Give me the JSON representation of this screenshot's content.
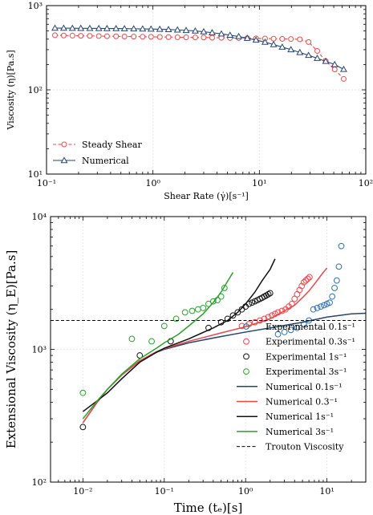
{
  "chart_data": [
    {
      "type": "line",
      "xscale": "log",
      "yscale": "log",
      "xlim": [
        0.1,
        100
      ],
      "ylim": [
        10,
        1000
      ],
      "xlabel": "Shear Rate (γ̇)[s⁻¹]",
      "ylabel": "Viscosity (η)[Pa.s]",
      "xticks": [
        {
          "v": 0.1,
          "label": "10⁻¹"
        },
        {
          "v": 1,
          "label": "10⁰"
        },
        {
          "v": 10,
          "label": "10¹"
        },
        {
          "v": 100,
          "label": "10²"
        }
      ],
      "yticks": [
        {
          "v": 10,
          "label": "10¹"
        },
        {
          "v": 100,
          "label": "10²"
        },
        {
          "v": 1000,
          "label": "10³"
        }
      ],
      "grid": true,
      "legend_position": "lower-left",
      "series": [
        {
          "name": "Steady Shear",
          "color": "#e8474a",
          "line_style": "dashed",
          "marker": "circle-open",
          "x": [
            0.12,
            0.145,
            0.175,
            0.21,
            0.255,
            0.31,
            0.37,
            0.45,
            0.54,
            0.66,
            0.8,
            0.96,
            1.16,
            1.4,
            1.7,
            2.05,
            2.5,
            3.0,
            3.6,
            4.4,
            5.3,
            6.4,
            7.7,
            9.3,
            11.3,
            13.6,
            16.4,
            19.8,
            24,
            29,
            35,
            42,
            51,
            62
          ],
          "values": [
            445,
            442,
            440,
            438,
            437,
            435,
            433,
            432,
            430,
            429,
            427,
            426,
            424,
            423,
            421,
            420,
            419,
            418,
            416,
            415,
            413,
            412,
            410,
            408,
            407,
            405,
            403,
            401,
            398,
            370,
            290,
            220,
            175,
            135
          ]
        },
        {
          "name": "Numerical",
          "color": "#26456e",
          "line_style": "solid",
          "marker": "triangle-open",
          "x": [
            0.12,
            0.145,
            0.175,
            0.21,
            0.255,
            0.31,
            0.37,
            0.45,
            0.54,
            0.66,
            0.8,
            0.96,
            1.16,
            1.4,
            1.7,
            2.05,
            2.5,
            3.0,
            3.6,
            4.4,
            5.3,
            6.4,
            7.7,
            9.3,
            11.3,
            13.6,
            16.4,
            19.8,
            24,
            29,
            35,
            42,
            51,
            62
          ],
          "values": [
            540,
            540,
            539,
            538,
            537,
            536,
            535,
            534,
            533,
            531,
            529,
            527,
            524,
            520,
            515,
            508,
            500,
            490,
            477,
            462,
            446,
            430,
            410,
            390,
            368,
            345,
            322,
            300,
            278,
            257,
            237,
            218,
            200,
            175
          ]
        }
      ]
    },
    {
      "type": "line",
      "xscale": "log",
      "yscale": "log",
      "xlim": [
        0.004,
        30
      ],
      "ylim": [
        100,
        10000
      ],
      "xlabel": "Time (tₑ)[s]",
      "ylabel": "Extensional Viscosity (η_E)[Pa.s]",
      "xticks": [
        {
          "v": 0.01,
          "label": "10⁻²"
        },
        {
          "v": 0.1,
          "label": "10⁻¹"
        },
        {
          "v": 1,
          "label": "10⁰"
        },
        {
          "v": 10,
          "label": "10¹"
        }
      ],
      "yticks": [
        {
          "v": 100,
          "label": "10²"
        },
        {
          "v": 1000,
          "label": "10³"
        },
        {
          "v": 10000,
          "label": "10⁴"
        }
      ],
      "grid": true,
      "legend_position": "lower-right",
      "series": [
        {
          "name": "Experimental 0.1s⁻¹",
          "kind": "points",
          "color": "#2e6fad",
          "marker": "circle-open",
          "x": [
            2.5,
            3.0,
            3.6,
            4.3,
            5.2,
            6.0,
            6.8,
            7.6,
            8.4,
            9.2,
            10.0,
            10.8,
            11.6,
            12.4,
            13.2,
            14.0,
            15.0
          ],
          "values": [
            1300,
            1350,
            1400,
            1450,
            1550,
            1650,
            2000,
            2050,
            2100,
            2150,
            2200,
            2250,
            2500,
            2900,
            3300,
            4200,
            6000
          ]
        },
        {
          "name": "Experimental 0.3s⁻¹",
          "kind": "points",
          "color": "#e8474a",
          "marker": "circle-open",
          "x": [
            0.9,
            1.1,
            1.3,
            1.5,
            1.7,
            1.9,
            2.1,
            2.3,
            2.5,
            2.8,
            3.1,
            3.4,
            3.7,
            4.0,
            4.3,
            4.6,
            4.9,
            5.2,
            5.5,
            5.8,
            6.1
          ],
          "values": [
            1500,
            1550,
            1600,
            1650,
            1700,
            1750,
            1800,
            1850,
            1900,
            1950,
            2000,
            2100,
            2200,
            2400,
            2600,
            2800,
            3000,
            3200,
            3300,
            3400,
            3500
          ]
        },
        {
          "name": "Experimental 1s⁻¹",
          "kind": "points",
          "color": "#111111",
          "marker": "circle-open",
          "x": [
            0.01,
            0.05,
            0.12,
            0.35,
            0.5,
            0.6,
            0.7,
            0.8,
            0.9,
            1.0,
            1.1,
            1.2,
            1.3,
            1.4,
            1.5,
            1.6,
            1.7,
            1.8,
            1.9,
            2.0
          ],
          "values": [
            260,
            900,
            1150,
            1450,
            1600,
            1700,
            1800,
            1900,
            2000,
            2100,
            2200,
            2250,
            2300,
            2350,
            2400,
            2450,
            2500,
            2550,
            2600,
            2650
          ]
        },
        {
          "name": "Experimental 3s⁻¹",
          "kind": "points",
          "color": "#2e9e2e",
          "marker": "circle-open",
          "x": [
            0.01,
            0.04,
            0.07,
            0.1,
            0.14,
            0.18,
            0.22,
            0.26,
            0.3,
            0.35,
            0.4,
            0.45,
            0.5,
            0.55
          ],
          "values": [
            470,
            1200,
            1150,
            1500,
            1700,
            1900,
            1950,
            2000,
            2050,
            2200,
            2300,
            2350,
            2500,
            2900
          ]
        },
        {
          "name": "Numerical 0.1s⁻¹",
          "kind": "line",
          "color": "#26456e",
          "x": [
            0.01,
            0.015,
            0.02,
            0.03,
            0.05,
            0.08,
            0.1,
            0.2,
            0.5,
            1,
            2,
            5,
            10,
            20,
            30
          ],
          "values": [
            280,
            400,
            500,
            640,
            820,
            950,
            1000,
            1120,
            1250,
            1350,
            1450,
            1600,
            1750,
            1850,
            1870
          ]
        },
        {
          "name": "Numerical 0.3⁻¹",
          "kind": "line",
          "color": "#e8474a",
          "x": [
            0.01,
            0.015,
            0.02,
            0.03,
            0.05,
            0.08,
            0.1,
            0.2,
            0.5,
            1,
            2,
            3,
            4,
            5,
            6,
            7,
            8,
            9,
            10
          ],
          "values": [
            280,
            400,
            500,
            640,
            820,
            960,
            1010,
            1150,
            1330,
            1480,
            1700,
            1950,
            2150,
            2450,
            2750,
            3100,
            3450,
            3800,
            4100
          ]
        },
        {
          "name": "Numerical 1s⁻¹",
          "kind": "line",
          "color": "#111111",
          "x": [
            0.01,
            0.015,
            0.02,
            0.03,
            0.05,
            0.08,
            0.1,
            0.2,
            0.4,
            0.6,
            0.8,
            1.0,
            1.3,
            1.6,
            2.0,
            2.3
          ],
          "values": [
            340,
            410,
            470,
            600,
            800,
            950,
            1020,
            1200,
            1450,
            1650,
            1900,
            2200,
            2700,
            3300,
            4000,
            4800
          ]
        },
        {
          "name": "Numerical 3s⁻¹",
          "kind": "line",
          "color": "#2e9e2e",
          "x": [
            0.01,
            0.015,
            0.02,
            0.03,
            0.05,
            0.08,
            0.1,
            0.15,
            0.2,
            0.3,
            0.4,
            0.5,
            0.6,
            0.7
          ],
          "values": [
            300,
            410,
            500,
            650,
            850,
            1020,
            1120,
            1300,
            1500,
            1850,
            2250,
            2700,
            3250,
            3800
          ]
        },
        {
          "name": "Trouton Viscosity",
          "kind": "hline",
          "color": "#000000",
          "line_style": "dashed",
          "value": 1650
        }
      ]
    }
  ]
}
